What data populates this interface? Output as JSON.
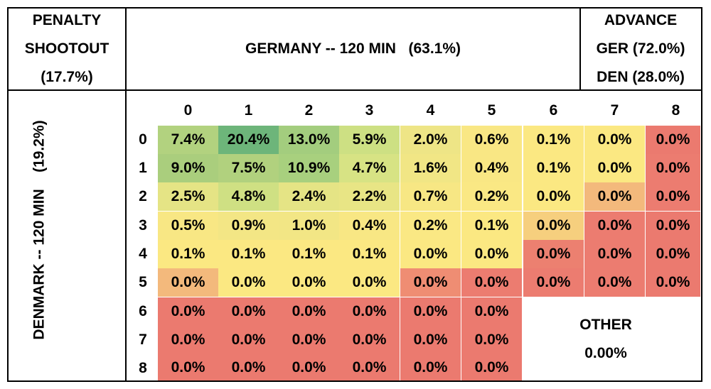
{
  "header": {
    "shootout": [
      "PENALTY",
      "SHOOTOUT",
      "(17.7%)"
    ],
    "germany": "GERMANY -- 120 MIN   (63.1%)",
    "advance": [
      "ADVANCE",
      "GER (72.0%)",
      "DEN (28.0%)"
    ]
  },
  "denmark_label": "DENMARK -- 120 MIN    (19.2%)",
  "other": {
    "label": "OTHER",
    "value": "0.00%"
  },
  "chart_data": {
    "type": "heatmap",
    "x_label": "GERMANY -- 120 MIN   (63.1%)",
    "y_label": "DENMARK -- 120 MIN    (19.2%)",
    "x": [
      "0",
      "1",
      "2",
      "3",
      "4",
      "5",
      "6",
      "7",
      "8"
    ],
    "y": [
      "0",
      "1",
      "2",
      "3",
      "4",
      "5",
      "6",
      "7",
      "8"
    ],
    "values": [
      [
        "7.4%",
        "20.4%",
        "13.0%",
        "5.9%",
        "2.0%",
        "0.6%",
        "0.1%",
        "0.0%",
        "0.0%"
      ],
      [
        "9.0%",
        "7.5%",
        "10.9%",
        "4.7%",
        "1.6%",
        "0.4%",
        "0.1%",
        "0.0%",
        "0.0%"
      ],
      [
        "2.5%",
        "4.8%",
        "2.4%",
        "2.2%",
        "0.7%",
        "0.2%",
        "0.0%",
        "0.0%",
        "0.0%"
      ],
      [
        "0.5%",
        "0.9%",
        "1.0%",
        "0.4%",
        "0.2%",
        "0.1%",
        "0.0%",
        "0.0%",
        "0.0%"
      ],
      [
        "0.1%",
        "0.1%",
        "0.1%",
        "0.1%",
        "0.0%",
        "0.0%",
        "0.0%",
        "0.0%",
        "0.0%"
      ],
      [
        "0.0%",
        "0.0%",
        "0.0%",
        "0.0%",
        "0.0%",
        "0.0%",
        "0.0%",
        "0.0%",
        "0.0%"
      ],
      [
        "0.0%",
        "0.0%",
        "0.0%",
        "0.0%",
        "0.0%",
        "0.0%",
        null,
        null,
        null
      ],
      [
        "0.0%",
        "0.0%",
        "0.0%",
        "0.0%",
        "0.0%",
        "0.0%",
        null,
        null,
        null
      ],
      [
        "0.0%",
        "0.0%",
        "0.0%",
        "0.0%",
        "0.0%",
        "0.0%",
        null,
        null,
        null
      ]
    ],
    "colors": [
      [
        "#b2d27f",
        "#6db57a",
        "#a3cd7e",
        "#cde083",
        "#eee586",
        "#f9e784",
        "#fbe882",
        "#fbe882",
        "#eb7a6f"
      ],
      [
        "#aace7d",
        "#b1d17e",
        "#a8d07e",
        "#d7e384",
        "#f1e685",
        "#f9e784",
        "#fbe882",
        "#fbe882",
        "#ec7c70"
      ],
      [
        "#e5e485",
        "#cfe083",
        "#e5e485",
        "#e8e585",
        "#f7e784",
        "#fae884",
        "#fbe882",
        "#f3b97c",
        "#ec7c70"
      ],
      [
        "#f8e784",
        "#f3e685",
        "#f2e685",
        "#f8e784",
        "#fae884",
        "#fbe882",
        "#f6cf7e",
        "#ec7c70",
        "#eb7a6f"
      ],
      [
        "#fbe882",
        "#fbe882",
        "#fbe882",
        "#fbe882",
        "#fbe882",
        "#fbe882",
        "#ec8070",
        "#ec7c70",
        "#eb7a6f"
      ],
      [
        "#f3b97c",
        "#fbe882",
        "#fbe882",
        "#fbe882",
        "#ef8d73",
        "#ec7c70",
        "#ec7c70",
        "#ec7c70",
        "#eb7a6f"
      ],
      [
        "#eb7a6f",
        "#eb7a6f",
        "#eb7a6f",
        "#eb7a6f",
        "#eb7a6f",
        "#eb7a6f",
        null,
        null,
        null
      ],
      [
        "#eb7a6f",
        "#eb7a6f",
        "#eb7a6f",
        "#eb7a6f",
        "#eb7a6f",
        "#eb7a6f",
        null,
        null,
        null
      ],
      [
        "#eb7a6f",
        "#eb7a6f",
        "#eb7a6f",
        "#eb7a6f",
        "#eb7a6f",
        "#eb7a6f",
        null,
        null,
        null
      ]
    ]
  }
}
